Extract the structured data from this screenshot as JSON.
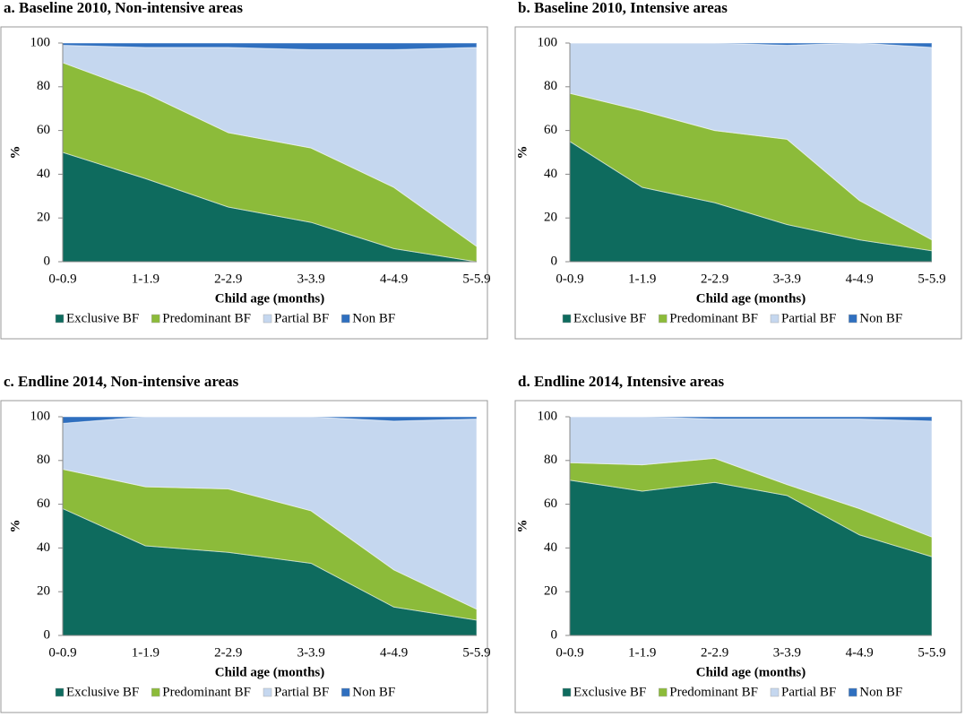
{
  "chart_data": [
    {
      "type": "stacked_area",
      "title": "a. Baseline 2010, Non-intensive areas",
      "xlabel": "Child age (months)",
      "ylabel": "%",
      "categories": [
        "0-0.9",
        "1-1.9",
        "2-2.9",
        "3-3.9",
        "4-4.9",
        "5-5.9"
      ],
      "series": [
        {
          "name": "Exclusive BF",
          "color": "#0e6b5e",
          "values": [
            50,
            38,
            25,
            18,
            6,
            0
          ]
        },
        {
          "name": "Predominant BF",
          "color": "#8cbb3a",
          "values": [
            41,
            39,
            34,
            34,
            28,
            7
          ]
        },
        {
          "name": "Partial BF",
          "color": "#c5d7ef",
          "values": [
            8,
            21,
            39,
            45,
            63,
            91
          ]
        },
        {
          "name": "Non BF",
          "color": "#2f6fbf",
          "values": [
            1,
            2,
            2,
            3,
            3,
            2
          ]
        }
      ],
      "ylim": [
        0,
        100
      ],
      "yticks": [
        0,
        20,
        40,
        60,
        80,
        100
      ],
      "legend": "bottom"
    },
    {
      "type": "stacked_area",
      "title": "b. Baseline 2010, Intensive areas",
      "xlabel": "Child age (months)",
      "ylabel": "%",
      "categories": [
        "0-0.9",
        "1-1.9",
        "2-2.9",
        "3-3.9",
        "4-4.9",
        "5-5.9"
      ],
      "series": [
        {
          "name": "Exclusive BF",
          "color": "#0e6b5e",
          "values": [
            55,
            34,
            27,
            17,
            10,
            5
          ]
        },
        {
          "name": "Predominant BF",
          "color": "#8cbb3a",
          "values": [
            22,
            35,
            33,
            39,
            18,
            5
          ]
        },
        {
          "name": "Partial BF",
          "color": "#c5d7ef",
          "values": [
            23,
            31,
            40,
            43,
            72,
            88
          ]
        },
        {
          "name": "Non BF",
          "color": "#2f6fbf",
          "values": [
            0,
            0,
            0,
            1,
            0,
            2
          ]
        }
      ],
      "ylim": [
        0,
        100
      ],
      "yticks": [
        0,
        20,
        40,
        60,
        80,
        100
      ],
      "legend": "bottom"
    },
    {
      "type": "stacked_area",
      "title": "c. Endline 2014, Non-intensive areas",
      "xlabel": "Child age (months)",
      "ylabel": "%",
      "categories": [
        "0-0.9",
        "1-1.9",
        "2-2.9",
        "3-3.9",
        "4-4.9",
        "5-5.9"
      ],
      "series": [
        {
          "name": "Exclusive BF",
          "color": "#0e6b5e",
          "values": [
            58,
            41,
            38,
            33,
            13,
            7
          ]
        },
        {
          "name": "Predominant BF",
          "color": "#8cbb3a",
          "values": [
            18,
            27,
            29,
            24,
            17,
            5
          ]
        },
        {
          "name": "Partial BF",
          "color": "#c5d7ef",
          "values": [
            21,
            32,
            33,
            43,
            68,
            87
          ]
        },
        {
          "name": "Non BF",
          "color": "#2f6fbf",
          "values": [
            3,
            0,
            0,
            0,
            2,
            1
          ]
        }
      ],
      "ylim": [
        0,
        100
      ],
      "yticks": [
        0,
        20,
        40,
        60,
        80,
        100
      ],
      "legend": "bottom"
    },
    {
      "type": "stacked_area",
      "title": "d. Endline 2014, Intensive areas",
      "xlabel": "Child age (months)",
      "ylabel": "%",
      "categories": [
        "0-0.9",
        "1-1.9",
        "2-2.9",
        "3-3.9",
        "4-4.9",
        "5-5.9"
      ],
      "series": [
        {
          "name": "Exclusive BF",
          "color": "#0e6b5e",
          "values": [
            71,
            66,
            70,
            64,
            46,
            36
          ]
        },
        {
          "name": "Predominant BF",
          "color": "#8cbb3a",
          "values": [
            8,
            12,
            11,
            5,
            12,
            9
          ]
        },
        {
          "name": "Partial BF",
          "color": "#c5d7ef",
          "values": [
            21,
            22,
            18,
            30,
            41,
            53
          ]
        },
        {
          "name": "Non BF",
          "color": "#2f6fbf",
          "values": [
            0,
            0,
            1,
            1,
            1,
            2
          ]
        }
      ],
      "ylim": [
        0,
        100
      ],
      "yticks": [
        0,
        20,
        40,
        60,
        80,
        100
      ],
      "legend": "bottom"
    }
  ]
}
